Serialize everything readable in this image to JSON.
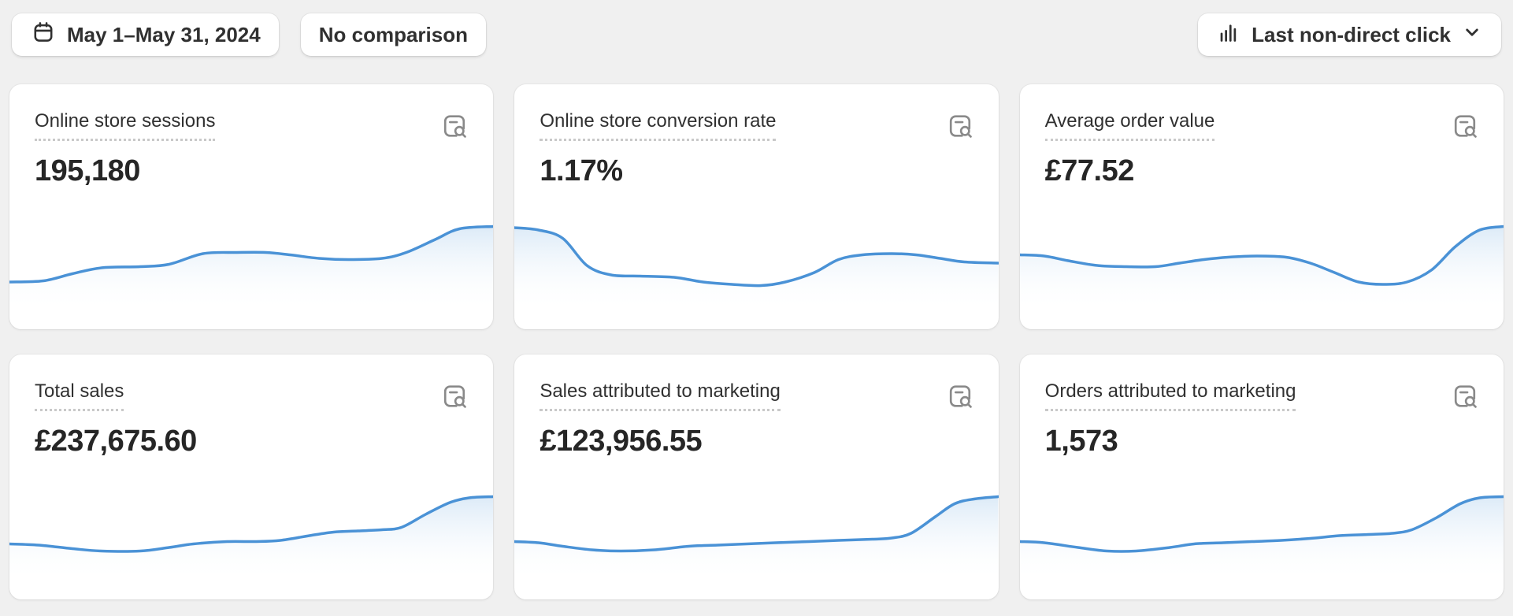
{
  "toolbar": {
    "date_button": {
      "label": "May 1–May 31, 2024",
      "icon": "calendar-icon"
    },
    "comparison_button": {
      "label": "No comparison"
    },
    "attribution_button": {
      "label": "Last non-direct click",
      "icon": "bar-chart-icon",
      "chevron": "chevron-down-icon"
    }
  },
  "colors": {
    "page_bg": "#f0f0f0",
    "card_bg": "#ffffff",
    "text": "#303030",
    "spark_line": "#4a92d6",
    "spark_fill_top": "#92bfe8",
    "icon_gray": "#8a8a8a"
  },
  "cards": [
    {
      "title": "Online store sessions",
      "value": "195,180"
    },
    {
      "title": "Online store conversion rate",
      "value": "1.17%"
    },
    {
      "title": "Average order value",
      "value": "£77.52"
    },
    {
      "title": "Total sales",
      "value": "£237,675.60"
    },
    {
      "title": "Sales attributed to marketing",
      "value": "£123,956.55"
    },
    {
      "title": "Orders attributed to marketing",
      "value": "1,573"
    }
  ],
  "chart_data": [
    {
      "type": "area",
      "title": "Online store sessions",
      "current_value": "195,180",
      "x_axis": "May 1–May 31, 2024 (daily, unlabeled sparkline)",
      "y_axis": "relative level 0–100 (0 = chart bottom)",
      "series_points_pct": [
        [
          0,
          40
        ],
        [
          7,
          41
        ],
        [
          13,
          47
        ],
        [
          19,
          52
        ],
        [
          27,
          53
        ],
        [
          33,
          55
        ],
        [
          40,
          64
        ],
        [
          47,
          65
        ],
        [
          53,
          65
        ],
        [
          58,
          63
        ],
        [
          64,
          60
        ],
        [
          70,
          59
        ],
        [
          77,
          60
        ],
        [
          82,
          65
        ],
        [
          88,
          76
        ],
        [
          93,
          85
        ],
        [
          100,
          87
        ]
      ]
    },
    {
      "type": "area",
      "title": "Online store conversion rate",
      "current_value": "1.17%",
      "x_axis": "May 1–May 31, 2024 (daily, unlabeled sparkline)",
      "y_axis": "relative level 0–100 (0 = chart bottom)",
      "series_points_pct": [
        [
          0,
          86
        ],
        [
          5,
          84
        ],
        [
          10,
          77
        ],
        [
          15,
          54
        ],
        [
          20,
          46
        ],
        [
          26,
          45
        ],
        [
          33,
          44
        ],
        [
          39,
          40
        ],
        [
          45,
          38
        ],
        [
          51,
          37
        ],
        [
          56,
          40
        ],
        [
          62,
          48
        ],
        [
          67,
          59
        ],
        [
          72,
          63
        ],
        [
          78,
          64
        ],
        [
          83,
          63
        ],
        [
          88,
          60
        ],
        [
          93,
          57
        ],
        [
          100,
          56
        ]
      ]
    },
    {
      "type": "area",
      "title": "Average order value",
      "current_value": "£77.52",
      "x_axis": "May 1–May 31, 2024 (daily, unlabeled sparkline)",
      "y_axis": "relative level 0–100 (0 = chart bottom)",
      "series_points_pct": [
        [
          0,
          63
        ],
        [
          5,
          62
        ],
        [
          10,
          58
        ],
        [
          16,
          54
        ],
        [
          22,
          53
        ],
        [
          28,
          53
        ],
        [
          33,
          56
        ],
        [
          38,
          59
        ],
        [
          43,
          61
        ],
        [
          49,
          62
        ],
        [
          55,
          61
        ],
        [
          60,
          56
        ],
        [
          65,
          48
        ],
        [
          70,
          40
        ],
        [
          75,
          38
        ],
        [
          80,
          40
        ],
        [
          85,
          50
        ],
        [
          90,
          70
        ],
        [
          95,
          84
        ],
        [
          100,
          87
        ]
      ]
    },
    {
      "type": "area",
      "title": "Total sales",
      "current_value": "£237,675.60",
      "x_axis": "May 1–May 31, 2024 (daily, unlabeled sparkline)",
      "y_axis": "relative level 0–100 (0 = chart bottom)",
      "series_points_pct": [
        [
          0,
          47
        ],
        [
          6,
          46
        ],
        [
          13,
          43
        ],
        [
          19,
          41
        ],
        [
          27,
          41
        ],
        [
          33,
          44
        ],
        [
          38,
          47
        ],
        [
          45,
          49
        ],
        [
          51,
          49
        ],
        [
          56,
          50
        ],
        [
          62,
          54
        ],
        [
          67,
          57
        ],
        [
          72,
          58
        ],
        [
          77,
          59
        ],
        [
          81,
          61
        ],
        [
          86,
          72
        ],
        [
          91,
          82
        ],
        [
          95,
          86
        ],
        [
          100,
          87
        ]
      ]
    },
    {
      "type": "area",
      "title": "Sales attributed to marketing",
      "current_value": "£123,956.55",
      "x_axis": "May 1–May 31, 2024 (daily, unlabeled sparkline)",
      "y_axis": "relative level 0–100 (0 = chart bottom)",
      "series_points_pct": [
        [
          0,
          49
        ],
        [
          5,
          48
        ],
        [
          10,
          45
        ],
        [
          16,
          42
        ],
        [
          22,
          41
        ],
        [
          29,
          42
        ],
        [
          36,
          45
        ],
        [
          42,
          46
        ],
        [
          48,
          47
        ],
        [
          54,
          48
        ],
        [
          61,
          49
        ],
        [
          67,
          50
        ],
        [
          74,
          51
        ],
        [
          78,
          52
        ],
        [
          82,
          56
        ],
        [
          87,
          70
        ],
        [
          91,
          81
        ],
        [
          95,
          85
        ],
        [
          100,
          87
        ]
      ]
    },
    {
      "type": "area",
      "title": "Orders attributed to marketing",
      "current_value": "1,573",
      "x_axis": "May 1–May 31, 2024 (daily, unlabeled sparkline)",
      "y_axis": "relative level 0–100 (0 = chart bottom)",
      "series_points_pct": [
        [
          0,
          49
        ],
        [
          5,
          48
        ],
        [
          12,
          44
        ],
        [
          18,
          41
        ],
        [
          24,
          41
        ],
        [
          31,
          44
        ],
        [
          36,
          47
        ],
        [
          42,
          48
        ],
        [
          48,
          49
        ],
        [
          54,
          50
        ],
        [
          61,
          52
        ],
        [
          66,
          54
        ],
        [
          72,
          55
        ],
        [
          77,
          56
        ],
        [
          81,
          59
        ],
        [
          86,
          69
        ],
        [
          91,
          81
        ],
        [
          95,
          86
        ],
        [
          100,
          87
        ]
      ]
    }
  ]
}
